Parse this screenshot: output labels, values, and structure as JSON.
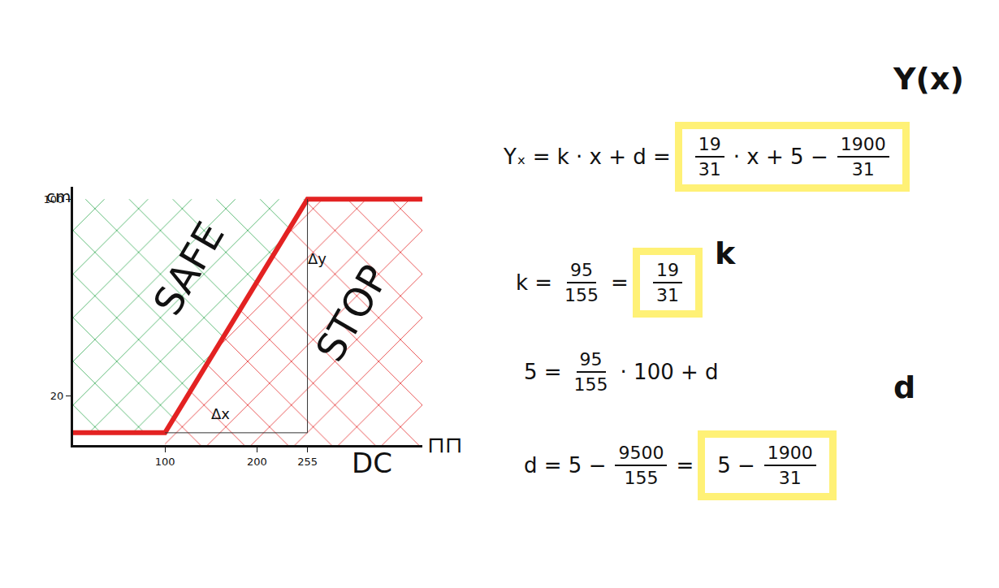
{
  "chart_data": {
    "type": "line",
    "y_label": "cm",
    "x_label": "DC",
    "x": [
      0,
      100,
      255,
      380
    ],
    "series": [
      {
        "name": "Y(x)",
        "color": "#e32222",
        "values": [
          5,
          5,
          100,
          100
        ]
      }
    ],
    "xlim": [
      0,
      380
    ],
    "xticks": [
      100,
      200,
      255
    ],
    "ylim": [
      0,
      105
    ],
    "yticks": [
      20,
      100
    ],
    "grid": false,
    "regions": [
      {
        "label": "SAFE",
        "color": "#2fa84f"
      },
      {
        "label": "STOP",
        "color": "#e32222"
      }
    ],
    "annotations": [
      "Δx",
      "Δy",
      "⊓⊓"
    ]
  },
  "formulas": [
    {
      "tag": "Y(x)",
      "parts": [
        "Yₓ = k · x + d ="
      ],
      "boxed": [
        {
          "num": "19",
          "den": "31"
        },
        "· x + 5 −",
        {
          "num": "1900",
          "den": "31"
        }
      ]
    },
    {
      "tag": "k",
      "parts": [
        "k =",
        {
          "num": "95",
          "den": "155"
        },
        "="
      ],
      "boxed": [
        {
          "num": "19",
          "den": "31"
        }
      ]
    },
    {
      "parts": [
        "5 =",
        {
          "num": "95",
          "den": "155"
        },
        "· 100 + d"
      ],
      "boxed": []
    },
    {
      "tag": "d",
      "parts": [
        "d = 5 −",
        {
          "num": "9500",
          "den": "155"
        },
        "="
      ],
      "boxed": [
        "5 −",
        {
          "num": "1900",
          "den": "31"
        }
      ]
    }
  ]
}
